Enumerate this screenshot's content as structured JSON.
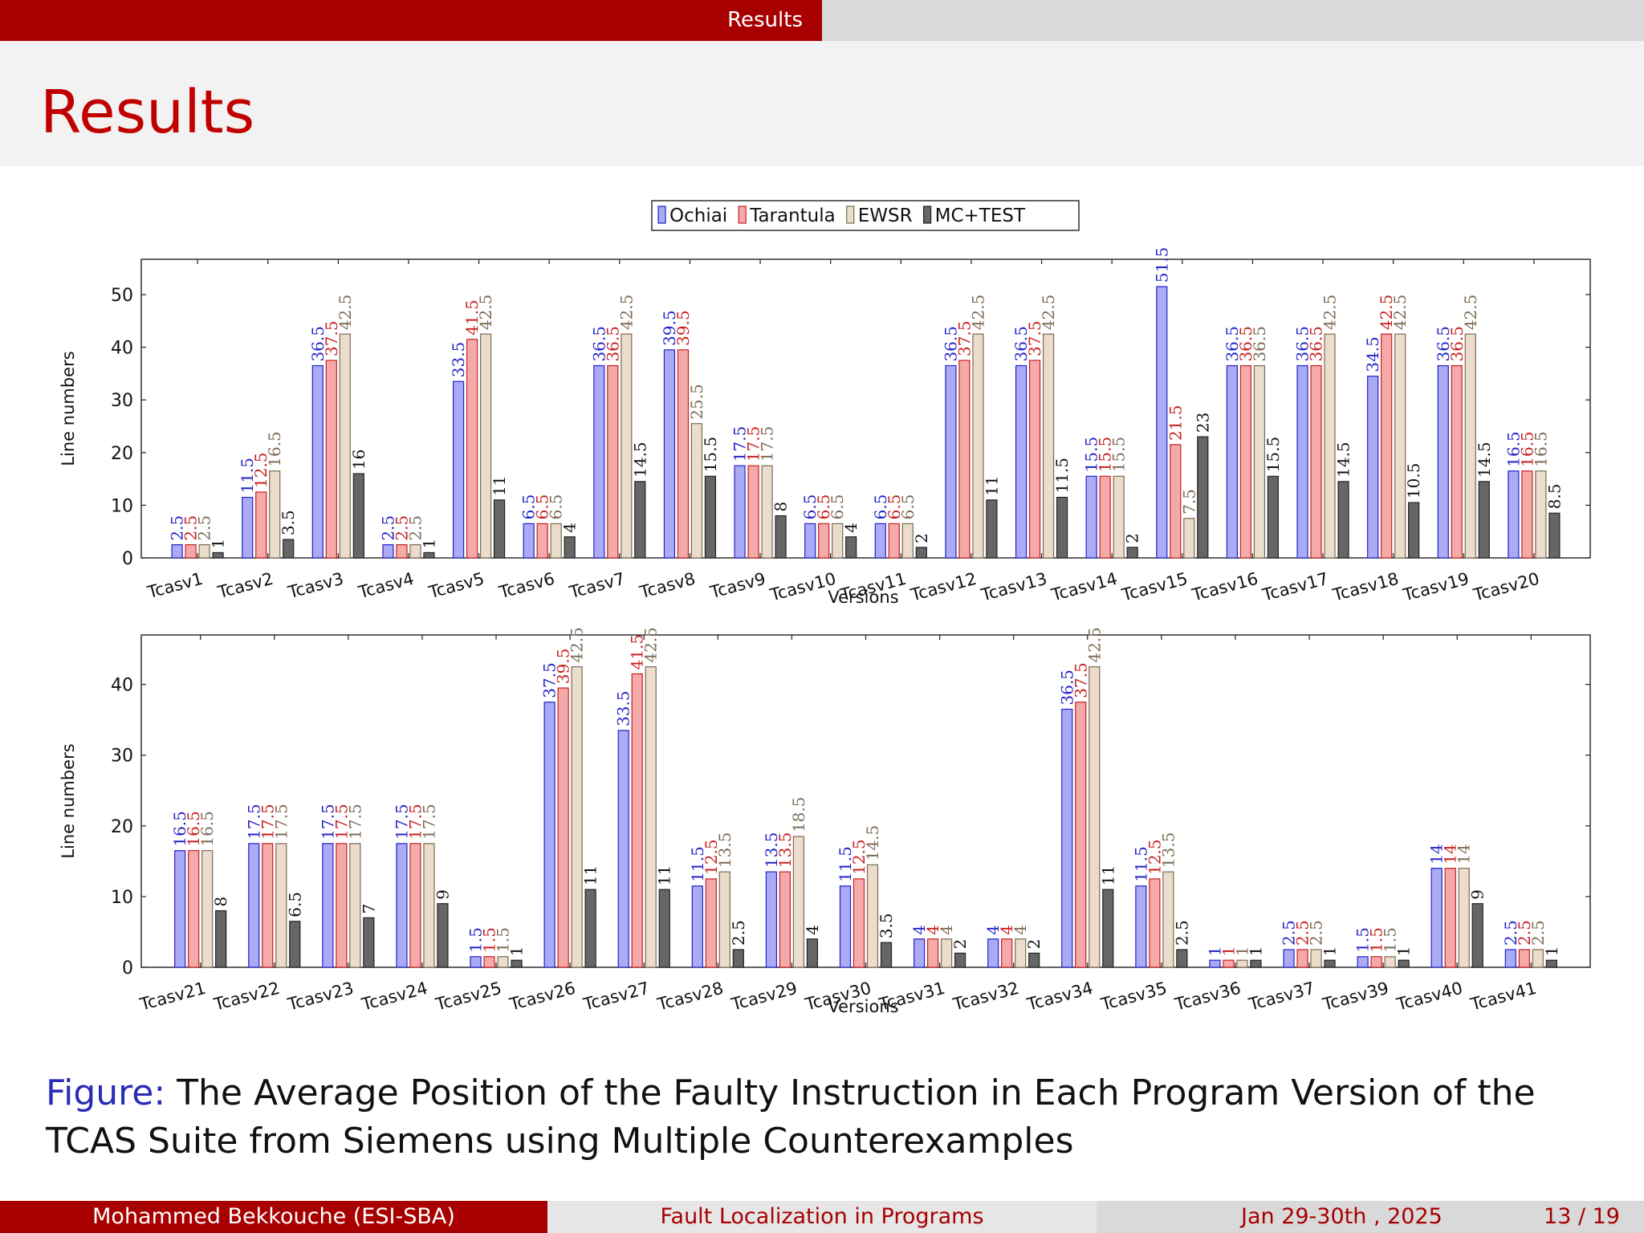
{
  "header": {
    "section": "Results",
    "title": "Results"
  },
  "colors": {
    "Ochiai": [
      "#aaaaf5",
      "#2323c8"
    ],
    "Tarantula": [
      "#f5aaaa",
      "#c81e1e"
    ],
    "EWSR": [
      "#ecdccb",
      "#7b6a55"
    ],
    "MC+TEST": [
      "#666666",
      "#222222"
    ],
    "label_Ochiai": "#2323c8",
    "label_Tarantula": "#c81e1e",
    "label_EWSR": "#7b6a55",
    "label_MC+TEST": "#111111"
  },
  "chart_data": [
    {
      "type": "bar",
      "xlabel": "Versions",
      "ylabel": "Line numbers",
      "ylim": [
        0,
        56.7
      ],
      "yticks": [
        0,
        10,
        20,
        30,
        40,
        50
      ],
      "legend": "top-center",
      "categories": [
        "Tcasv1",
        "Tcasv2",
        "Tcasv3",
        "Tcasv4",
        "Tcasv5",
        "Tcasv6",
        "Tcasv7",
        "Tcasv8",
        "Tcasv9",
        "Tcasv10",
        "Tcasv11",
        "Tcasv12",
        "Tcasv13",
        "Tcasv14",
        "Tcasv15",
        "Tcasv16",
        "Tcasv17",
        "Tcasv18",
        "Tcasv19",
        "Tcasv20"
      ],
      "series": [
        {
          "name": "Ochiai",
          "values": [
            2.5,
            11.5,
            36.5,
            2.5,
            33.5,
            6.5,
            36.5,
            39.5,
            17.5,
            6.5,
            6.5,
            36.5,
            36.5,
            15.5,
            51.5,
            36.5,
            36.5,
            34.5,
            36.5,
            16.5
          ]
        },
        {
          "name": "Tarantula",
          "values": [
            2.5,
            12.5,
            37.5,
            2.5,
            41.5,
            6.5,
            36.5,
            39.5,
            17.5,
            6.5,
            6.5,
            37.5,
            37.5,
            15.5,
            21.5,
            36.5,
            36.5,
            42.5,
            36.5,
            16.5
          ]
        },
        {
          "name": "EWSR",
          "values": [
            2.5,
            16.5,
            42.5,
            2.5,
            42.5,
            6.5,
            42.5,
            25.5,
            17.5,
            6.5,
            6.5,
            42.5,
            42.5,
            15.5,
            7.5,
            36.5,
            42.5,
            42.5,
            42.5,
            16.5
          ]
        },
        {
          "name": "MC+TEST",
          "values": [
            1,
            3.5,
            16,
            1,
            11,
            4,
            14.5,
            15.5,
            8,
            4,
            2,
            11,
            11.5,
            2,
            23,
            15.5,
            14.5,
            10.5,
            14.5,
            8.5
          ]
        }
      ]
    },
    {
      "type": "bar",
      "xlabel": "Versions",
      "ylabel": "Line numbers",
      "ylim": [
        0,
        47
      ],
      "yticks": [
        0,
        10,
        20,
        30,
        40
      ],
      "categories": [
        "Tcasv21",
        "Tcasv22",
        "Tcasv23",
        "Tcasv24",
        "Tcasv25",
        "Tcasv26",
        "Tcasv27",
        "Tcasv28",
        "Tcasv29",
        "Tcasv30",
        "Tcasv31",
        "Tcasv32",
        "Tcasv34",
        "Tcasv35",
        "Tcasv36",
        "Tcasv37",
        "Tcasv39",
        "Tcasv40",
        "Tcasv41"
      ],
      "series": [
        {
          "name": "Ochiai",
          "values": [
            16.5,
            17.5,
            17.5,
            17.5,
            1.5,
            37.5,
            33.5,
            11.5,
            13.5,
            11.5,
            4,
            4,
            36.5,
            11.5,
            1,
            2.5,
            1.5,
            14,
            2.5
          ]
        },
        {
          "name": "Tarantula",
          "values": [
            16.5,
            17.5,
            17.5,
            17.5,
            1.5,
            39.5,
            41.5,
            12.5,
            13.5,
            12.5,
            4,
            4,
            37.5,
            12.5,
            1,
            2.5,
            1.5,
            14,
            2.5
          ]
        },
        {
          "name": "EWSR",
          "values": [
            16.5,
            17.5,
            17.5,
            17.5,
            1.5,
            42.5,
            42.5,
            13.5,
            18.5,
            14.5,
            4,
            4,
            42.5,
            13.5,
            1,
            2.5,
            1.5,
            14,
            2.5
          ]
        },
        {
          "name": "MC+TEST",
          "values": [
            8,
            6.5,
            7,
            9,
            1,
            11,
            11,
            2.5,
            4,
            3.5,
            2,
            2,
            11,
            2.5,
            1,
            1,
            1,
            9,
            1
          ]
        }
      ]
    }
  ],
  "caption": {
    "label": "Figure:",
    "text": "The Average Position of the Faulty Instruction in Each Program Version of the TCAS Suite from Siemens using Multiple Counterexamples"
  },
  "footer": {
    "author": "Mohammed Bekkouche  (ESI-SBA)",
    "talk": "Fault Localization in Programs",
    "date": "Jan 29-30th , 2025",
    "page": "13 / 19"
  }
}
